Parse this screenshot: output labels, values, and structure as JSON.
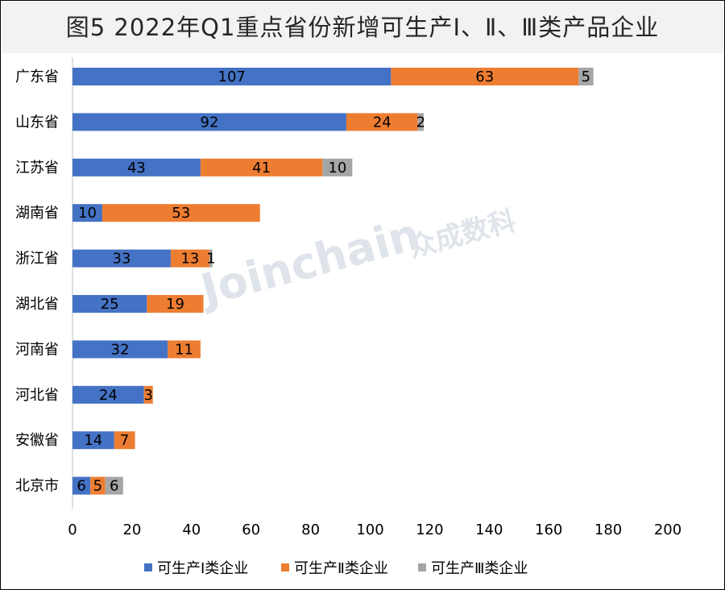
{
  "title": "图5  2022年Q1重点省份新增可生产Ⅰ、Ⅱ、Ⅲ类产品企业",
  "watermark": {
    "brand": "Joinchain",
    "suffix": "众成数科"
  },
  "colors": {
    "series1": "#4472c4",
    "series2": "#ed7d31",
    "series3": "#a5a5a5"
  },
  "chart_data": {
    "type": "bar",
    "orientation": "horizontal",
    "stacked": true,
    "categories": [
      "广东省",
      "山东省",
      "江苏省",
      "湖南省",
      "浙江省",
      "湖北省",
      "河南省",
      "河北省",
      "安徽省",
      "北京市"
    ],
    "series": [
      {
        "name": "可生产Ⅰ类企业",
        "values": [
          107,
          92,
          43,
          10,
          33,
          25,
          32,
          24,
          14,
          6
        ]
      },
      {
        "name": "可生产Ⅱ类企业",
        "values": [
          63,
          24,
          41,
          53,
          13,
          19,
          11,
          3,
          7,
          5
        ]
      },
      {
        "name": "可生产Ⅲ类企业",
        "values": [
          5,
          2,
          10,
          0,
          1,
          0,
          0,
          0,
          0,
          6
        ]
      }
    ],
    "xlim": [
      0,
      200
    ],
    "xticks": [
      0,
      20,
      40,
      60,
      80,
      100,
      120,
      140,
      160,
      180,
      200
    ],
    "grid": false,
    "legend": "bottom"
  }
}
